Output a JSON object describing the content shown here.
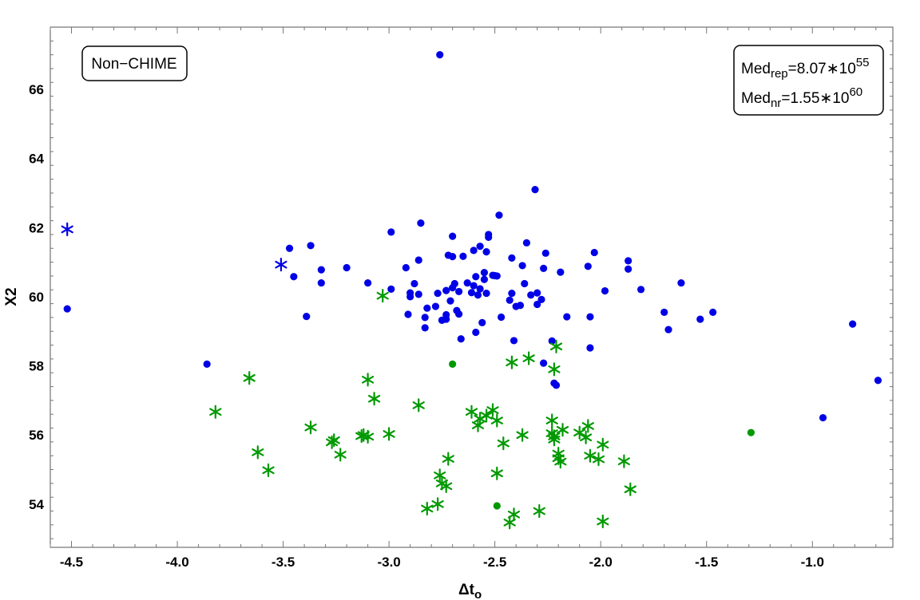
{
  "chart_data": {
    "type": "scatter",
    "xlabel": "Δt",
    "xlabel_sub": "o",
    "ylabel": "X2",
    "xlim": [
      -4.6,
      -0.62
    ],
    "ylim": [
      52.75,
      67.8
    ],
    "xticks": [
      -4.5,
      -4.0,
      -3.5,
      -3.0,
      -2.5,
      -2.0,
      -1.5,
      -1.0
    ],
    "xtick_labels": [
      "-4.5",
      "-4.0",
      "-3.5",
      "-3.0",
      "-2.5",
      "-2.0",
      "-1.5",
      "-1.0"
    ],
    "yticks": [
      54,
      56,
      58,
      60,
      62,
      64,
      66
    ],
    "ytick_labels": [
      "54",
      "56",
      "58",
      "60",
      "62",
      "64",
      "66"
    ],
    "grid": false,
    "annotations": {
      "label_box": "Non−CHIME",
      "median_rep": {
        "prefix": "Med",
        "sub": "rep",
        "value": "=8.07∗10",
        "exp": "55"
      },
      "median_nr": {
        "prefix": "Med",
        "sub": "nr",
        "value": "=1.55∗10",
        "exp": "60"
      }
    },
    "series": [
      {
        "color": "#0000e6",
        "marker": "circle",
        "points": [
          [
            -4.52,
            59.65
          ],
          [
            -3.86,
            58.05
          ],
          [
            -3.47,
            61.4
          ],
          [
            -3.45,
            60.58
          ],
          [
            -3.39,
            59.43
          ],
          [
            -3.37,
            61.48
          ],
          [
            -3.32,
            60.78
          ],
          [
            -3.32,
            60.4
          ],
          [
            -3.2,
            60.84
          ],
          [
            -3.1,
            60.4
          ],
          [
            -2.99,
            61.87
          ],
          [
            -2.99,
            60.22
          ],
          [
            -2.92,
            60.84
          ],
          [
            -2.91,
            59.49
          ],
          [
            -2.9,
            60.11
          ],
          [
            -2.9,
            60.0
          ],
          [
            -2.88,
            60.38
          ],
          [
            -2.86,
            60.07
          ],
          [
            -2.86,
            61.06
          ],
          [
            -2.85,
            62.13
          ],
          [
            -2.83,
            59.4
          ],
          [
            -2.83,
            59.1
          ],
          [
            -2.82,
            59.67
          ],
          [
            -2.78,
            59.72
          ],
          [
            -2.77,
            60.1
          ],
          [
            -2.76,
            67.0
          ],
          [
            -2.75,
            59.32
          ],
          [
            -2.73,
            59.48
          ],
          [
            -2.73,
            59.35
          ],
          [
            -2.73,
            60.18
          ],
          [
            -2.72,
            61.2
          ],
          [
            -2.71,
            59.88
          ],
          [
            -2.7,
            61.16
          ],
          [
            -2.7,
            61.75
          ],
          [
            -2.7,
            60.26
          ],
          [
            -2.69,
            60.38
          ],
          [
            -2.68,
            59.6
          ],
          [
            -2.67,
            60.15
          ],
          [
            -2.67,
            59.5
          ],
          [
            -2.66,
            58.78
          ],
          [
            -2.65,
            61.17
          ],
          [
            -2.63,
            60.4
          ],
          [
            -2.61,
            60.12
          ],
          [
            -2.6,
            61.34
          ],
          [
            -2.6,
            60.32
          ],
          [
            -2.59,
            60.58
          ],
          [
            -2.59,
            58.97
          ],
          [
            -2.58,
            60.05
          ],
          [
            -2.57,
            61.46
          ],
          [
            -2.57,
            60.23
          ],
          [
            -2.56,
            59.25
          ],
          [
            -2.55,
            60.5
          ],
          [
            -2.55,
            60.7
          ],
          [
            -2.54,
            61.3
          ],
          [
            -2.54,
            60.1
          ],
          [
            -2.53,
            61.72
          ],
          [
            -2.53,
            61.8
          ],
          [
            -2.51,
            60.62
          ],
          [
            -2.5,
            60.61
          ],
          [
            -2.49,
            60.6
          ],
          [
            -2.48,
            62.36
          ],
          [
            -2.47,
            59.41
          ],
          [
            -2.43,
            59.9
          ],
          [
            -2.42,
            61.12
          ],
          [
            -2.42,
            60.1
          ],
          [
            -2.41,
            58.73
          ],
          [
            -2.4,
            59.72
          ],
          [
            -2.38,
            59.75
          ],
          [
            -2.37,
            60.9
          ],
          [
            -2.36,
            60.38
          ],
          [
            -2.35,
            61.56
          ],
          [
            -2.33,
            60.05
          ],
          [
            -2.31,
            63.1
          ],
          [
            -2.3,
            59.78
          ],
          [
            -2.3,
            60.11
          ],
          [
            -2.28,
            59.92
          ],
          [
            -2.27,
            60.82
          ],
          [
            -2.27,
            58.08
          ],
          [
            -2.26,
            61.26
          ],
          [
            -2.23,
            58.72
          ],
          [
            -2.22,
            57.5
          ],
          [
            -2.21,
            57.44
          ],
          [
            -2.19,
            60.71
          ],
          [
            -2.16,
            59.42
          ],
          [
            -2.06,
            60.88
          ],
          [
            -2.05,
            59.42
          ],
          [
            -2.05,
            58.52
          ],
          [
            -2.03,
            61.28
          ],
          [
            -1.98,
            60.17
          ],
          [
            -1.87,
            61.04
          ],
          [
            -1.87,
            60.8
          ],
          [
            -1.81,
            60.21
          ],
          [
            -1.7,
            59.55
          ],
          [
            -1.68,
            59.05
          ],
          [
            -1.62,
            60.4
          ],
          [
            -1.53,
            59.35
          ],
          [
            -1.47,
            59.55
          ],
          [
            -0.95,
            56.5
          ],
          [
            -0.81,
            59.21
          ],
          [
            -0.69,
            57.58
          ]
        ]
      },
      {
        "color": "#0000e6",
        "marker": "star",
        "points": [
          [
            -4.52,
            61.95
          ],
          [
            -3.51,
            60.93
          ]
        ]
      },
      {
        "color": "#009900",
        "marker": "star",
        "points": [
          [
            -3.82,
            56.67
          ],
          [
            -3.66,
            57.65
          ],
          [
            -3.62,
            55.5
          ],
          [
            -3.57,
            54.98
          ],
          [
            -3.37,
            56.22
          ],
          [
            -3.27,
            55.79
          ],
          [
            -3.26,
            55.85
          ],
          [
            -3.23,
            55.43
          ],
          [
            -3.13,
            55.97
          ],
          [
            -3.12,
            56.0
          ],
          [
            -3.1,
            55.95
          ],
          [
            -3.1,
            57.6
          ],
          [
            -3.07,
            57.05
          ],
          [
            -3.03,
            60.03
          ],
          [
            -3.0,
            56.03
          ],
          [
            -2.86,
            56.86
          ],
          [
            -2.82,
            53.87
          ],
          [
            -2.77,
            54.0
          ],
          [
            -2.76,
            54.83
          ],
          [
            -2.75,
            54.6
          ],
          [
            -2.73,
            54.52
          ],
          [
            -2.72,
            55.31
          ],
          [
            -2.61,
            56.67
          ],
          [
            -2.58,
            56.28
          ],
          [
            -2.57,
            56.47
          ],
          [
            -2.54,
            56.56
          ],
          [
            -2.51,
            56.72
          ],
          [
            -2.49,
            56.42
          ],
          [
            -2.49,
            54.89
          ],
          [
            -2.46,
            55.76
          ],
          [
            -2.43,
            53.47
          ],
          [
            -2.42,
            58.1
          ],
          [
            -2.41,
            53.7
          ],
          [
            -2.37,
            56.0
          ],
          [
            -2.34,
            58.22
          ],
          [
            -2.29,
            53.8
          ],
          [
            -2.23,
            56.05
          ],
          [
            -2.23,
            56.42
          ],
          [
            -2.22,
            55.87
          ],
          [
            -2.22,
            55.96
          ],
          [
            -2.22,
            57.9
          ],
          [
            -2.21,
            58.56
          ],
          [
            -2.2,
            55.46
          ],
          [
            -2.2,
            55.33
          ],
          [
            -2.19,
            55.23
          ],
          [
            -2.18,
            56.15
          ],
          [
            -2.1,
            56.07
          ],
          [
            -2.07,
            55.93
          ],
          [
            -2.06,
            56.26
          ],
          [
            -2.05,
            55.4
          ],
          [
            -2.01,
            55.3
          ],
          [
            -1.99,
            55.72
          ],
          [
            -1.99,
            53.5
          ],
          [
            -1.89,
            55.24
          ],
          [
            -1.86,
            54.43
          ]
        ]
      },
      {
        "color": "#009900",
        "marker": "circle",
        "points": [
          [
            -2.7,
            58.05
          ],
          [
            -2.49,
            53.95
          ],
          [
            -1.29,
            56.07
          ]
        ]
      }
    ]
  }
}
